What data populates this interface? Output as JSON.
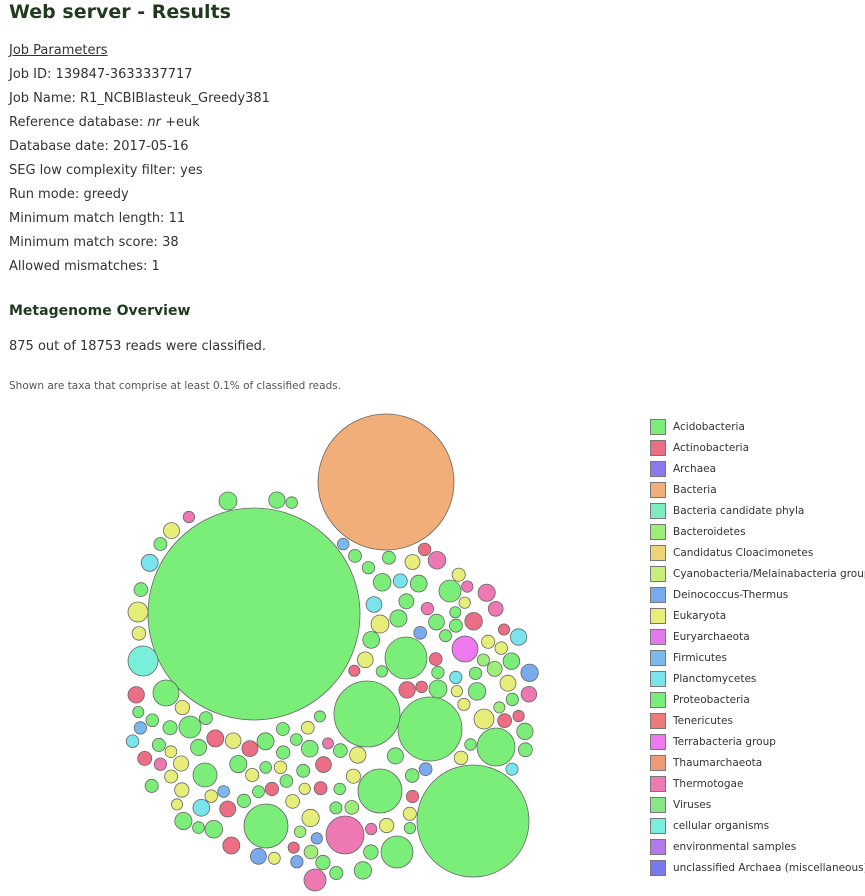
{
  "page": {
    "title": "Web server - Results"
  },
  "job_params": {
    "heading": "Job Parameters",
    "job_id_label": "Job ID:",
    "job_id": "139847-3633337717",
    "job_name_label": "Job Name:",
    "job_name": "R1_NCBIBlasteuk_Greedy381",
    "ref_db_label": "Reference database:",
    "ref_db_italic": "nr",
    "ref_db_rest": "+euk",
    "db_date_label": "Database date:",
    "db_date": "2017-05-16",
    "seg_label": "SEG low complexity filter:",
    "seg": "yes",
    "run_mode_label": "Run mode:",
    "run_mode": "greedy",
    "min_len_label": "Minimum match length:",
    "min_len": "11",
    "min_score_label": "Minimum match score:",
    "min_score": "38",
    "mismatch_label": "Allowed mismatches:",
    "mismatch": "1"
  },
  "overview": {
    "title": "Metagenome Overview",
    "summary": "875 out of 18753 reads were classified.",
    "note": "Shown are taxa that comprise at least 0.1% of classified reads."
  },
  "legend": [
    {
      "label": "Acidobacteria",
      "color": "#7aee79"
    },
    {
      "label": "Actinobacteria",
      "color": "#ec6e84"
    },
    {
      "label": "Archaea",
      "color": "#8a7aee"
    },
    {
      "label": "Bacteria",
      "color": "#f2ae79"
    },
    {
      "label": "Bacteria candidate phyla",
      "color": "#7aeec1"
    },
    {
      "label": "Bacteroidetes",
      "color": "#9cee79"
    },
    {
      "label": "Candidatus Cloacimonetes",
      "color": "#eed479"
    },
    {
      "label": "Cyanobacteria/Melainabacteria group",
      "color": "#c7ee79"
    },
    {
      "label": "Deinococcus-Thermus",
      "color": "#7aaaee"
    },
    {
      "label": "Eukaryota",
      "color": "#e6ee79"
    },
    {
      "label": "Euryarchaeota",
      "color": "#e479ee"
    },
    {
      "label": "Firmicutes",
      "color": "#79b9ee"
    },
    {
      "label": "Planctomycetes",
      "color": "#79e3ee"
    },
    {
      "label": "Proteobacteria",
      "color": "#79ee79"
    },
    {
      "label": "Tenericutes",
      "color": "#ee7979"
    },
    {
      "label": "Terrabacteria group",
      "color": "#ee79ee"
    },
    {
      "label": "Thaumarchaeota",
      "color": "#ee9a79"
    },
    {
      "label": "Thermotogae",
      "color": "#ee79b2"
    },
    {
      "label": "Viruses",
      "color": "#88e688"
    },
    {
      "label": "cellular organisms",
      "color": "#79eed9"
    },
    {
      "label": "environmental samples",
      "color": "#b579ee"
    },
    {
      "label": "unclassified Archaea (miscellaneous)",
      "color": "#7979ee"
    }
  ]
}
